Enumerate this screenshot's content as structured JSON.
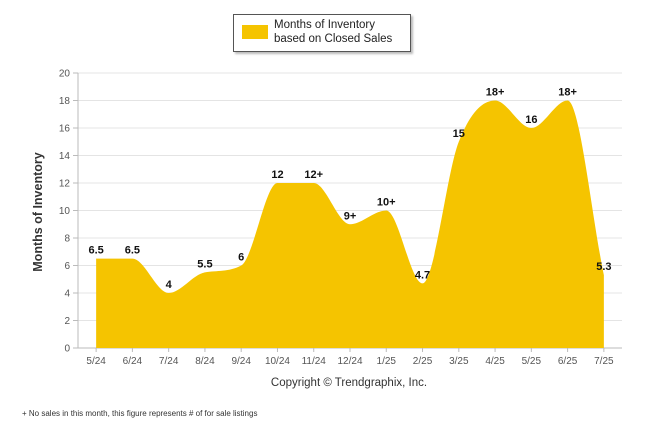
{
  "chart_data": {
    "type": "area",
    "title": "",
    "legend": "Months of Inventory based on Closed Sales",
    "legend_position": "top-center",
    "ylabel": "Months of Inventory",
    "xlabel": "",
    "ylim": [
      0,
      20
    ],
    "yticks": [
      0,
      2,
      4,
      6,
      8,
      10,
      12,
      14,
      16,
      18,
      20
    ],
    "grid": "horizontal",
    "color": "#f5c400",
    "categories": [
      "5/24",
      "6/24",
      "7/24",
      "8/24",
      "9/24",
      "10/24",
      "11/24",
      "12/24",
      "1/25",
      "2/25",
      "3/25",
      "4/25",
      "5/25",
      "6/25",
      "7/25"
    ],
    "values": [
      6.5,
      6.5,
      4,
      5.5,
      6,
      12,
      12,
      9,
      10,
      4.7,
      15,
      18,
      16,
      18,
      5.3
    ],
    "data_labels": [
      "6.5",
      "6.5",
      "4",
      "5.5",
      "6",
      "12",
      "12+",
      "9+",
      "10+",
      "4.7",
      "15",
      "18+",
      "16",
      "18+",
      "5.3"
    ]
  },
  "copyright": "Copyright © Trendgraphix, Inc.",
  "footnote": "+ No sales in this month, this figure represents # of for sale listings"
}
